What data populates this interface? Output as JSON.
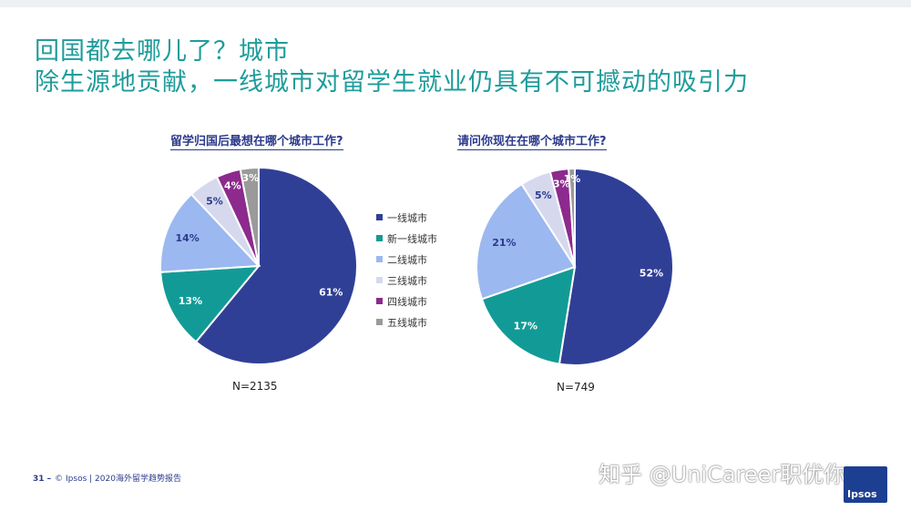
{
  "slide": {
    "title_line1": "回国都去哪儿了？城市",
    "title_line2": "除生源地贡献，一线城市对留学生就业仍具有不可撼动的吸引力"
  },
  "colors": {
    "title": "#1f9c9b",
    "accent": "#2b3a8c",
    "logo": "#1d3f91"
  },
  "chart_data": [
    {
      "type": "pie",
      "title": "留学归国后最想在哪个城市工作?",
      "categories": [
        "一线城市",
        "新一线城市",
        "二线城市",
        "三线城市",
        "四线城市",
        "五线城市"
      ],
      "values": [
        61,
        13,
        14,
        5,
        4,
        3
      ],
      "labels": [
        "61%",
        "13%",
        "14%",
        "5%",
        "4%",
        "3%"
      ],
      "colors": [
        "#303f96",
        "#129b96",
        "#9cb8f0",
        "#d6d9ee",
        "#8c2a8d",
        "#9a9a9a"
      ],
      "note": "N=2135"
    },
    {
      "type": "pie",
      "title": "请问你现在在哪个城市工作?",
      "categories": [
        "一线城市",
        "新一线城市",
        "二线城市",
        "三线城市",
        "四线城市",
        "五线城市"
      ],
      "values": [
        52,
        17,
        21,
        5,
        3,
        1
      ],
      "labels": [
        "52%",
        "17%",
        "21%",
        "5%",
        "3%",
        "1%"
      ],
      "colors": [
        "#303f96",
        "#129b96",
        "#9cb8f0",
        "#d6d9ee",
        "#8c2a8d",
        "#9a9a9a"
      ],
      "note": "N=749"
    }
  ],
  "legend": {
    "items": [
      "一线城市",
      "新一线城市",
      "二线城市",
      "三线城市",
      "四线城市",
      "五线城市"
    ]
  },
  "footer": {
    "page": "31 –",
    "text": "© Ipsos | 2020海外留学趋势报告"
  },
  "watermark": "知乎 @UniCareer职优你",
  "logo": "Ipsos"
}
